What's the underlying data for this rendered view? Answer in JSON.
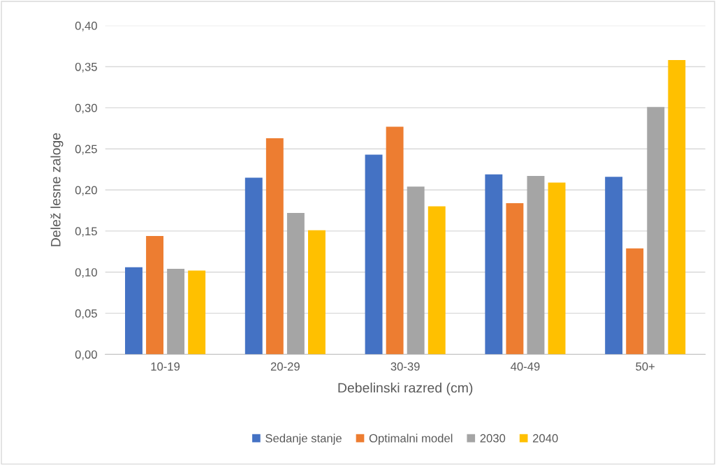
{
  "chart_data": {
    "type": "bar",
    "xlabel": "Debelinski razred (cm)",
    "ylabel": "Delež lesne zaloge",
    "categories": [
      "10-19",
      "20-29",
      "30-39",
      "40-49",
      "50+"
    ],
    "series": [
      {
        "name": "Sedanje stanje",
        "color": "#4472c4",
        "values": [
          0.106,
          0.215,
          0.243,
          0.219,
          0.216
        ]
      },
      {
        "name": "Optimalni model",
        "color": "#ed7d31",
        "values": [
          0.144,
          0.263,
          0.277,
          0.184,
          0.129
        ]
      },
      {
        "name": "2030",
        "color": "#a5a5a5",
        "values": [
          0.104,
          0.172,
          0.204,
          0.217,
          0.301
        ]
      },
      {
        "name": "2040",
        "color": "#ffc000",
        "values": [
          0.102,
          0.151,
          0.18,
          0.209,
          0.358
        ]
      }
    ],
    "ylim": [
      0,
      0.4
    ],
    "yticks": [
      {
        "value": 0,
        "label": "0,00"
      },
      {
        "value": 0.05,
        "label": "0,05"
      },
      {
        "value": 0.1,
        "label": "0,10"
      },
      {
        "value": 0.15,
        "label": "0,15"
      },
      {
        "value": 0.2,
        "label": "0,20"
      },
      {
        "value": 0.25,
        "label": "0,25"
      },
      {
        "value": 0.3,
        "label": "0,30"
      },
      {
        "value": 0.35,
        "label": "0,35"
      },
      {
        "value": 0.4,
        "label": "0,40"
      }
    ],
    "grid": "y",
    "legend": "bottom"
  }
}
